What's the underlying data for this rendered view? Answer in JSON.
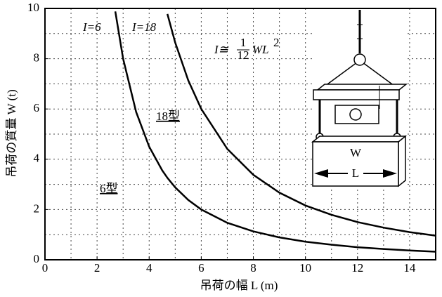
{
  "chart_data": {
    "type": "line",
    "x_label": "吊荷の幅 L (m)",
    "y_label": "吊荷の質量 W (t)",
    "x": [
      2.7,
      3,
      3.5,
      4,
      4.5,
      4.7,
      5,
      5.5,
      6,
      7,
      8,
      9,
      10,
      11,
      12,
      13,
      14,
      15
    ],
    "series": [
      {
        "name": "I=6",
        "color": "#000000",
        "values": [
          9.88,
          8.0,
          5.88,
          4.5,
          3.56,
          3.26,
          2.88,
          2.38,
          2.0,
          1.47,
          1.13,
          0.89,
          0.72,
          0.6,
          0.5,
          0.43,
          0.37,
          0.32
        ]
      },
      {
        "name": "I=18",
        "color": "#000000",
        "values": [
          null,
          null,
          null,
          null,
          null,
          9.78,
          8.64,
          7.14,
          6.0,
          4.41,
          3.38,
          2.67,
          2.16,
          1.79,
          1.5,
          1.28,
          1.1,
          0.96
        ]
      }
    ],
    "xlim": [
      0,
      15
    ],
    "ylim": [
      0,
      10
    ],
    "xticks": [
      0,
      2,
      4,
      6,
      8,
      10,
      12,
      14
    ],
    "yticks": [
      0,
      2,
      4,
      6,
      8,
      10
    ],
    "minor_xticks": [
      1,
      3,
      5,
      7,
      9,
      11,
      13
    ],
    "minor_yticks": [
      1,
      3,
      5,
      7,
      9
    ],
    "grid": true,
    "curve_labels": [
      "18型",
      "6型"
    ],
    "formula": {
      "lhs": "I≅",
      "num": "1",
      "den": "12",
      "rhs": "WL",
      "exp": "2"
    },
    "figure_labels": {
      "weight": "W",
      "length": "L"
    }
  }
}
